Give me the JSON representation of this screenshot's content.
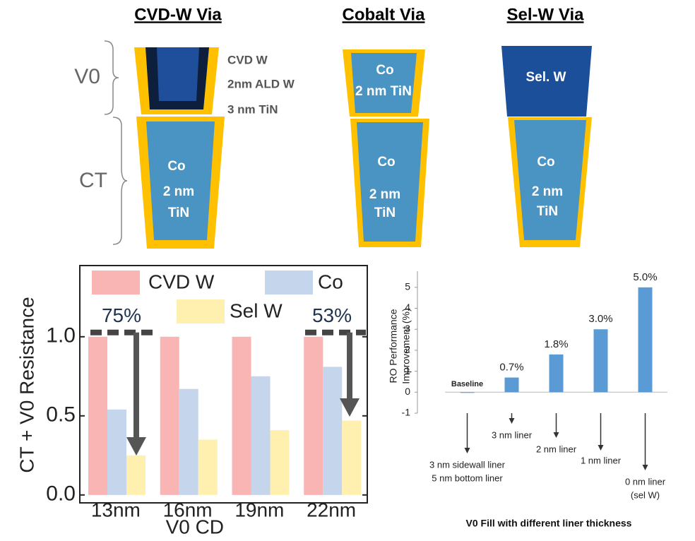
{
  "diagram": {
    "layer_labels": [
      "V0",
      "CT"
    ],
    "vias": [
      {
        "title": "CVD-W Via",
        "v0_labels": [
          "CVD W",
          "2nm ALD W",
          "3 nm TiN"
        ],
        "ct_labels": [
          "Co",
          "2 nm",
          "TiN"
        ]
      },
      {
        "title": "Cobalt Via",
        "v0_labels": [
          "Co",
          "2 nm TiN"
        ],
        "ct_labels": [
          "Co",
          "2 nm",
          "TiN"
        ]
      },
      {
        "title": "Sel-W Via",
        "v0_labels": [
          "Sel. W"
        ],
        "ct_labels": [
          "Co",
          "2 nm",
          "TiN"
        ]
      }
    ]
  },
  "chart_data": [
    {
      "type": "bar",
      "categories": [
        "13nm",
        "16nm",
        "19nm",
        "22nm"
      ],
      "series": [
        {
          "name": "CVD W",
          "color": "#f9b4b4",
          "values": [
            1,
            1,
            1,
            1
          ]
        },
        {
          "name": "Co",
          "color": "#c5d5ec",
          "values": [
            0.54,
            0.67,
            0.75,
            0.81
          ]
        },
        {
          "name": "Sel W",
          "color": "#fff0b0",
          "values": [
            0.25,
            0.35,
            0.41,
            0.47
          ]
        }
      ],
      "xlabel": "V0 CD",
      "ylabel": "CT + V0 Resistance",
      "ylim": [
        -0.05,
        1.45
      ],
      "yticks": [
        {
          "value": 0,
          "label": "0.0"
        },
        {
          "value": 0.5,
          "label": "0.5"
        },
        {
          "value": 1,
          "label": "1.0"
        }
      ],
      "annotations": [
        "75%",
        "53%"
      ]
    },
    {
      "type": "bar",
      "title": "V0 Fill with different liner thickness",
      "ylabel": [
        "RO Performance",
        "Improvement  (%)"
      ],
      "categories": [
        [
          "3 nm sidewall liner",
          "5 nm bottom liner"
        ],
        [
          "3 nm liner"
        ],
        [
          "2 nm liner"
        ],
        [
          "1 nm liner"
        ],
        [
          "0 nm liner",
          "(sel W)"
        ]
      ],
      "values": [
        0,
        0.7,
        1.8,
        3.0,
        5.0
      ],
      "value_labels": [
        "Baseline",
        "0.7%",
        "1.8%",
        "3.0%",
        "5.0%"
      ],
      "color": "#5b9bd5",
      "ylim": [
        -1,
        5.5
      ],
      "yticks": [
        -1,
        0,
        1,
        2,
        3,
        4,
        5
      ]
    }
  ]
}
